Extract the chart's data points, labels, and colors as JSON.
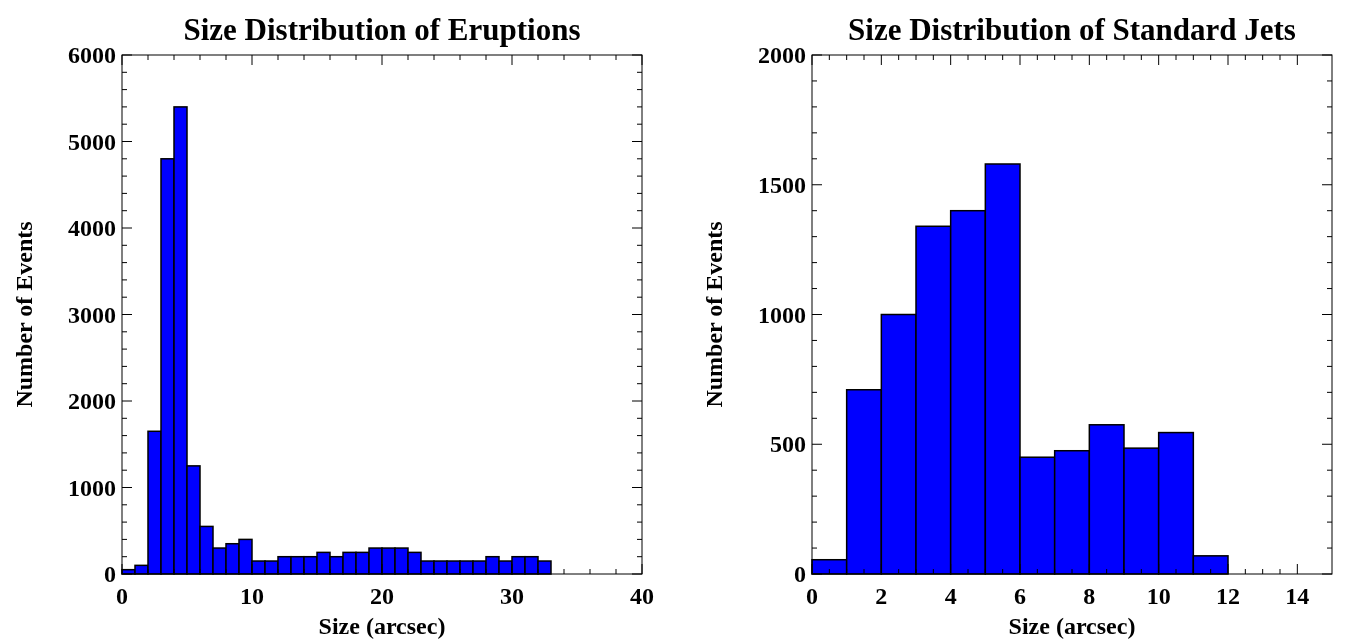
{
  "chart_data": [
    {
      "type": "histogram",
      "title": "Size Distribution of Eruptions",
      "xlabel": "Size (arcsec)",
      "ylabel": "Number of Events",
      "color": "#0000ff",
      "bins": [
        0,
        1,
        2,
        3,
        4,
        5,
        6,
        7,
        8,
        9,
        10,
        11,
        12,
        13,
        14,
        15,
        16,
        17,
        18,
        19,
        20,
        21,
        22,
        23,
        24,
        25,
        26,
        27,
        28,
        29,
        30,
        31,
        32,
        33
      ],
      "values": [
        50,
        100,
        1650,
        4800,
        5400,
        1250,
        550,
        300,
        350,
        400,
        150,
        150,
        200,
        200,
        200,
        250,
        200,
        250,
        250,
        300,
        300,
        300,
        250,
        150,
        150,
        150,
        150,
        150,
        200,
        150,
        200,
        200,
        150
      ],
      "xlim": [
        0,
        40
      ],
      "xticks": [
        0,
        10,
        20,
        30,
        40
      ],
      "ylim": [
        0,
        6000
      ],
      "yticks": [
        0,
        1000,
        2000,
        3000,
        4000,
        5000,
        6000
      ],
      "grid": false
    },
    {
      "type": "histogram",
      "title": "Size Distribution of Standard Jets",
      "xlabel": "Size (arcsec)",
      "ylabel": "Number of Events",
      "color": "#0000ff",
      "bins": [
        0,
        1,
        2,
        3,
        4,
        5,
        6,
        7,
        8,
        9,
        10,
        11,
        12
      ],
      "values": [
        55,
        710,
        1000,
        1340,
        1400,
        1580,
        450,
        475,
        575,
        485,
        545,
        70
      ],
      "xlim": [
        0,
        15
      ],
      "xticks": [
        0,
        2,
        4,
        6,
        8,
        10,
        12,
        14
      ],
      "ylim": [
        0,
        2000
      ],
      "yticks": [
        0,
        500,
        1000,
        1500,
        2000
      ],
      "grid": false
    }
  ]
}
